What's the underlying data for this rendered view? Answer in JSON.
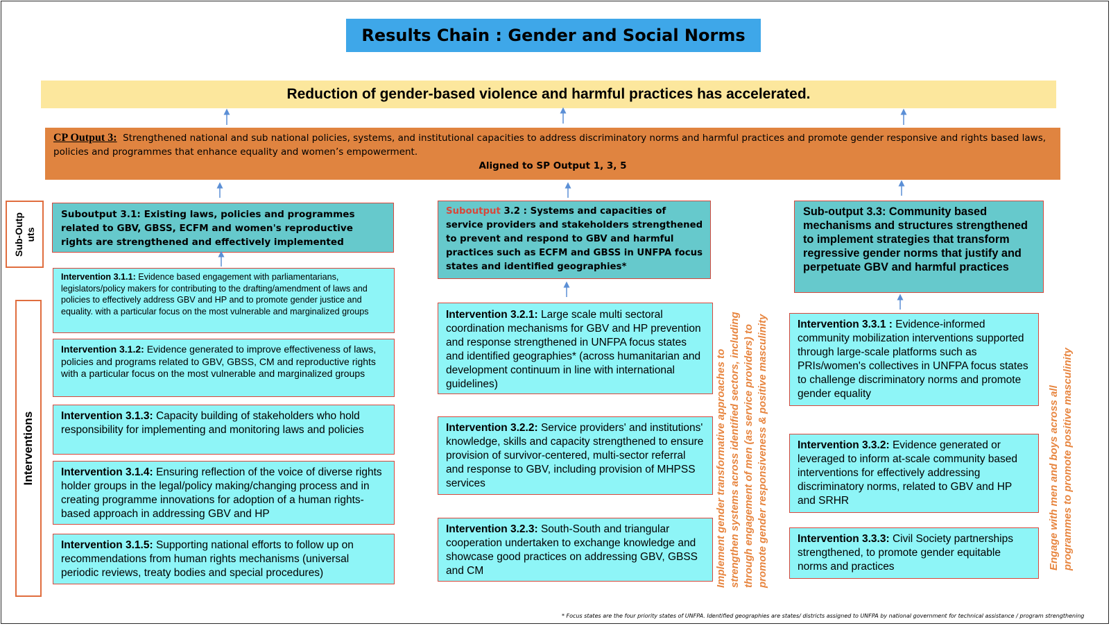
{
  "title": "Results Chain : Gender and Social Norms",
  "goal": "Reduction of gender-based violence and harmful practices has accelerated.",
  "cp_output": {
    "label": "CP Output 3:",
    "text": "Strengthened national and sub national policies, systems, and institutional capacities to address discriminatory norms and harmful practices and promote gender responsive and rights based laws, policies and programmes that enhance equality and women’s empowerment.",
    "aligned": "Aligned to SP Output 1, 3, 5"
  },
  "side_labels": {
    "suboutputs": "Sub-Outp\nuts",
    "interventions": "Interventions"
  },
  "suboutputs": {
    "s1": "Suboutput 3.1: Existing  laws, policies and programmes related to GBV, GBSS, ECFM and women's reproductive rights are strengthened and effectively implemented",
    "s2_prefix": "Suboutput",
    "s2_text": " 3.2 : Systems and capacities of service providers and stakeholders strengthened to prevent and respond to GBV and harmful practices such as ECFM and GBSS in UNFPA focus states and identified geographies*",
    "s3": "Sub-output 3.3: Community based mechanisms and structures strengthened to implement strategies that transform regressive gender norms that justify and perpetuate GBV and harmful practices"
  },
  "interventions": {
    "i311_label": "Intervention 3.1.1:",
    "i311_text": " Evidence based engagement with parliamentarians, legislators/policy makers for contributing to the drafting/amendment of laws and policies to effectively address GBV and HP and to promote gender justice and equality. with a particular focus on the most vulnerable and marginalized groups",
    "i312_label": "Intervention 3.1.2:",
    "i312_text": " Evidence generated to improve effectiveness of laws, policies and programs related to GBV, GBSS, CM and reproductive rights with a particular focus on the most vulnerable and marginalized groups",
    "i313_label": "Intervention 3.1.3:",
    "i313_text": " Capacity building of stakeholders who hold responsibility for implementing and monitoring laws and policies",
    "i314_label": "Intervention 3.1.4:",
    "i314_text": " Ensuring reflection of the voice of diverse rights holder groups in the legal/policy making/changing process and in creating programme innovations for adoption of a human rights-based approach in addressing GBV and HP",
    "i315_label": "Intervention 3.1.5:",
    "i315_text": " Supporting national efforts to follow up on recommendations from human rights mechanisms (universal periodic reviews, treaty bodies and special procedures)",
    "i321_label": "Intervention 3.2.1:",
    "i321_text": " Large scale multi sectoral coordination mechanisms for GBV and HP prevention and response strengthened in UNFPA focus states and identified geographies* (across humanitarian and development continuum in line with international guidelines)",
    "i322_label": "Intervention 3.2.2:",
    "i322_text": " Service providers' and institutions' knowledge, skills and capacity strengthened to ensure provision of survivor-centered, multi-sector referral and response to GBV, including provision of MHPSS services",
    "i323_label": "Intervention 3.2.3:",
    "i323_text": " South-South and triangular cooperation undertaken to exchange knowledge and showcase good practices on addressing GBV, GBSS and CM",
    "i331_label": "Intervention 3.3.1 :",
    "i331_text": " Evidence-informed community mobilization interventions supported through large-scale platforms such as PRIs/women's collectives in UNFPA focus states to challenge discriminatory norms and promote gender equality",
    "i332_label": "Intervention 3.3.2:",
    "i332_text": " Evidence generated or leveraged to inform at-scale community based interventions for effectively addressing discriminatory norms, related to GBV and HP and SRHR",
    "i333_label": "Intervention 3.3.3:",
    "i333_text": " Civil Society partnerships strengthened, to promote gender equitable norms and practices"
  },
  "vertical_notes": {
    "v2": "Implement gender transformative approaches to\nstrengthen systems across identified sectors, including\nthrough engagement of men (as service providers) to\npromote gender responsiveness & positive masculinity",
    "v3": "Engage with men and boys across all\nprogrammes to promote positive masculinity"
  },
  "footnote": "* Focus states are the four priority states of UNFPA. Identified geographies are states/ districts assigned to UNFPA by national government for technical assistance / program strengthening",
  "colors": {
    "title_bg": "#3ea7e9",
    "goal_bg": "#fce79d",
    "cp_bg": "#e08440",
    "sub_bg": "#66c9cc",
    "int_bg": "#8ef5f7",
    "border_red": "#d8473b",
    "note_orange": "#e7853f",
    "arrow": "#5b8fd6"
  }
}
